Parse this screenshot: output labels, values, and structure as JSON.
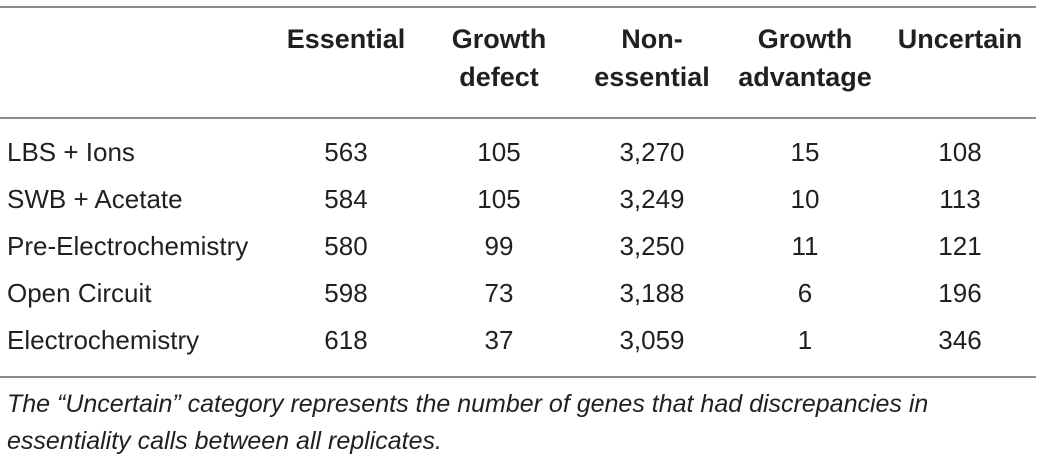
{
  "table": {
    "headers": [
      [
        "Essential"
      ],
      [
        "Growth",
        "defect"
      ],
      [
        "Non-",
        "essential"
      ],
      [
        "Growth",
        "advantage"
      ],
      [
        "Uncertain"
      ]
    ],
    "rows": [
      {
        "label": "LBS + Ions",
        "values": [
          "563",
          "105",
          "3,270",
          "15",
          "108"
        ]
      },
      {
        "label": "SWB + Acetate",
        "values": [
          "584",
          "105",
          "3,249",
          "10",
          "113"
        ]
      },
      {
        "label": "Pre-Electrochemistry",
        "values": [
          "580",
          "99",
          "3,250",
          "11",
          "121"
        ]
      },
      {
        "label": "Open Circuit",
        "values": [
          "598",
          "73",
          "3,188",
          "6",
          "196"
        ]
      },
      {
        "label": "Electrochemistry",
        "values": [
          "618",
          "37",
          "3,059",
          "1",
          "346"
        ]
      }
    ]
  },
  "footnote": "The “Uncertain” category represents the number of genes that had discrepancies in essentiality calls between all replicates."
}
